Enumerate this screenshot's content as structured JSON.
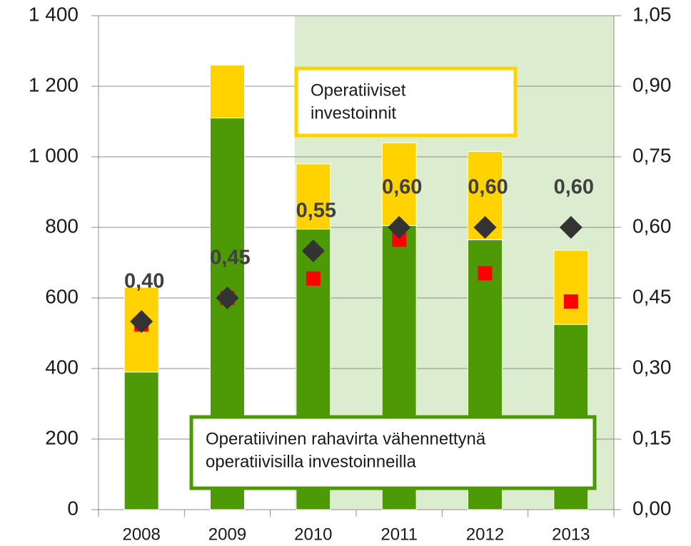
{
  "chart_data": {
    "type": "bar",
    "categories": [
      "2008",
      "2009",
      "2010",
      "2011",
      "2012",
      "2013"
    ],
    "series": [
      {
        "name": "Operatiivinen rahavirta vähennettynä operatiivisilla investoinneilla",
        "color": "#4e9a06",
        "values": [
          390,
          1110,
          795,
          805,
          765,
          525
        ],
        "stack": true
      },
      {
        "name": "Operatiiviset investoinnit",
        "color": "#ffd200",
        "values": [
          240,
          150,
          185,
          235,
          250,
          210
        ],
        "stack": true
      },
      {
        "color": "#ff0000",
        "values": [
          525,
          600,
          655,
          765,
          670,
          590
        ],
        "marker": "square"
      },
      {
        "color": "#333333",
        "values": [
          0.4,
          0.45,
          0.55,
          0.6,
          0.6,
          0.6
        ],
        "value_labels": [
          "0,40",
          "0,45",
          "0,55",
          "0,60",
          "0,60",
          "0,60"
        ],
        "axis": "y2",
        "marker": "diamond"
      }
    ],
    "annotations": [
      {
        "lines": [
          "Operatiiviset",
          "investoinnit"
        ],
        "color": "#ffd200"
      },
      {
        "lines": [
          "Operatiivinen rahavirta vähennettynä",
          "operatiivisilla investoinneilla"
        ],
        "color": "#4e9a06"
      }
    ],
    "ylim": [
      0,
      1400
    ],
    "yticks": [
      0,
      200,
      400,
      600,
      800,
      {
        "value": 1000,
        "label": "1 000"
      },
      {
        "value": 1200,
        "label": "1 200"
      },
      {
        "value": 1400,
        "label": "1 400"
      }
    ],
    "y2lim": [
      0,
      1.05
    ],
    "y2ticks": [
      {
        "value": 0,
        "label": "0,00"
      },
      {
        "value": 0.15,
        "label": "0,15"
      },
      {
        "value": 0.3,
        "label": "0,30"
      },
      {
        "value": 0.45,
        "label": "0,45"
      },
      {
        "value": 0.6,
        "label": "0,60"
      },
      {
        "value": 0.75,
        "label": "0,75"
      },
      {
        "value": 0.9,
        "label": "0,90"
      },
      {
        "value": 1.05,
        "label": "1,05"
      }
    ],
    "grid": true
  }
}
